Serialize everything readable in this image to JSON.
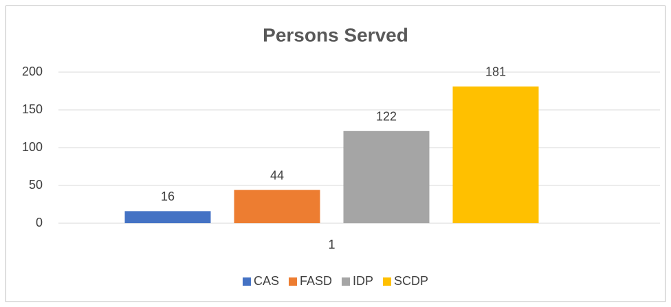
{
  "chart_data": {
    "type": "bar",
    "title": "Persons Served",
    "categories": [
      "1"
    ],
    "series": [
      {
        "name": "CAS",
        "color": "#4472c4",
        "values": [
          16
        ]
      },
      {
        "name": "FASD",
        "color": "#ed7d31",
        "values": [
          44
        ]
      },
      {
        "name": "IDP",
        "color": "#a5a5a5",
        "values": [
          122
        ]
      },
      {
        "name": "SCDP",
        "color": "#ffc000",
        "values": [
          181
        ]
      }
    ],
    "ylim": [
      0,
      200
    ],
    "yticks": [
      0,
      50,
      100,
      150,
      200
    ],
    "grid": true,
    "legend": "bottom"
  }
}
